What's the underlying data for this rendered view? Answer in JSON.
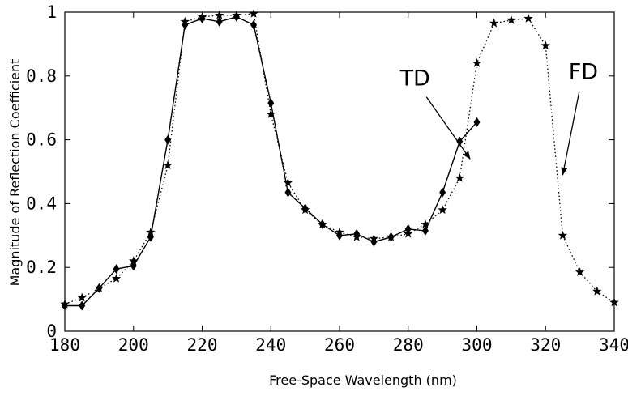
{
  "chart_data": {
    "type": "line",
    "title": "",
    "xlabel": "Free-Space Wavelength (nm)",
    "ylabel": "Magnitude of Reflection Coefficient",
    "xlim": [
      180,
      340
    ],
    "ylim": [
      0,
      1
    ],
    "xticks": [
      180,
      200,
      220,
      240,
      260,
      280,
      300,
      320,
      340
    ],
    "yticks": [
      0,
      0.2,
      0.4,
      0.6,
      0.8,
      1
    ],
    "xtick_labels": [
      "180",
      "200",
      "220",
      "240",
      "260",
      "280",
      "300",
      "320",
      "340"
    ],
    "ytick_labels": [
      "0",
      "0.2",
      "0.4",
      "0.6",
      "0.8",
      "1"
    ],
    "grid": false,
    "series": [
      {
        "name": "TD",
        "line_style": "solid",
        "marker": "diamond",
        "x": [
          180,
          185,
          190,
          195,
          200,
          205,
          210,
          215,
          220,
          225,
          230,
          235,
          240,
          245,
          250,
          255,
          260,
          265,
          270,
          275,
          280,
          285,
          290,
          295,
          300
        ],
        "y": [
          0.08,
          0.08,
          0.135,
          0.195,
          0.205,
          0.295,
          0.6,
          0.96,
          0.98,
          0.97,
          0.985,
          0.96,
          0.715,
          0.435,
          0.385,
          0.335,
          0.3,
          0.305,
          0.28,
          0.295,
          0.32,
          0.315,
          0.435,
          0.595,
          0.655
        ]
      },
      {
        "name": "FD",
        "line_style": "dotted",
        "marker": "star",
        "x": [
          180,
          185,
          190,
          195,
          200,
          205,
          210,
          215,
          220,
          225,
          230,
          235,
          240,
          245,
          250,
          255,
          260,
          265,
          270,
          275,
          280,
          285,
          290,
          295,
          300,
          305,
          310,
          315,
          320,
          325,
          330,
          335,
          340
        ],
        "y": [
          0.085,
          0.105,
          0.135,
          0.165,
          0.22,
          0.31,
          0.52,
          0.97,
          0.985,
          0.99,
          0.99,
          0.995,
          0.68,
          0.465,
          0.38,
          0.335,
          0.31,
          0.295,
          0.29,
          0.295,
          0.305,
          0.335,
          0.38,
          0.48,
          0.84,
          0.965,
          0.975,
          0.98,
          0.895,
          0.3,
          0.185,
          0.125,
          0.09
        ]
      }
    ],
    "annotations": [
      {
        "text": "TD",
        "x": 282,
        "y": 0.77,
        "arrow_to": [
          298,
          0.54
        ]
      },
      {
        "text": "FD",
        "x": 331,
        "y": 0.79,
        "arrow_to": [
          325,
          0.49
        ]
      }
    ]
  }
}
